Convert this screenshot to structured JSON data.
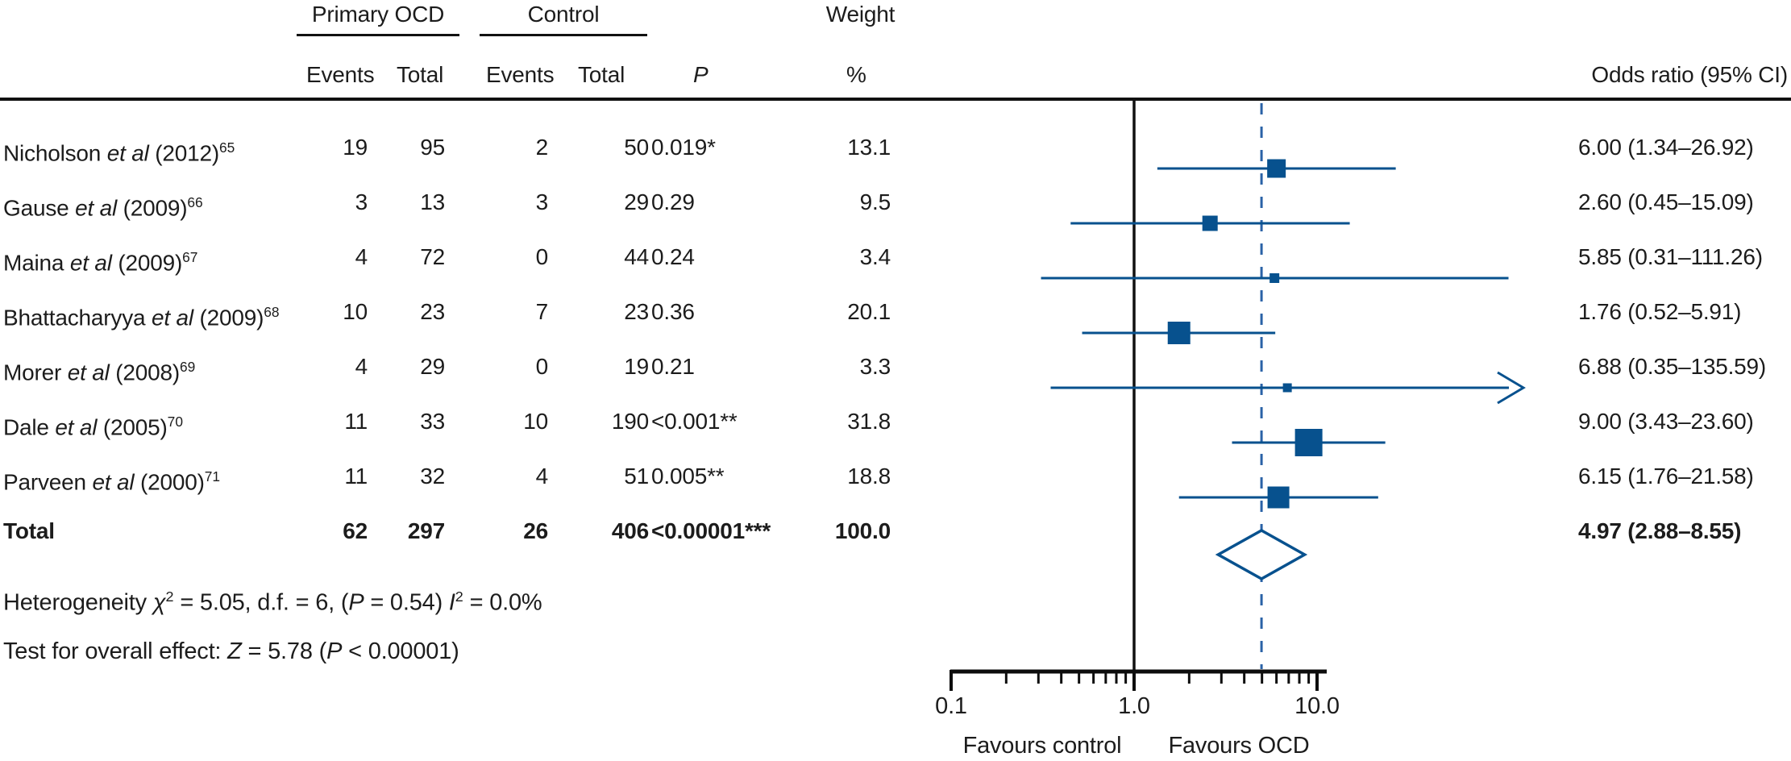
{
  "figure": {
    "accent_blue": "#07518e",
    "dashed_blue": "#2a62a7",
    "line_color": "#111111",
    "text_color": "#1c1c1c",
    "background": "#ffffff"
  },
  "header": {
    "group_ocd": "Primary OCD",
    "group_control": "Control",
    "weight": "Weight",
    "col_events_ocd": "Events",
    "col_total_ocd": "Total",
    "col_events_ctrl": "Events",
    "col_total_ctrl": "Total",
    "col_p": "P",
    "col_pct": "%",
    "col_or": "Odds ratio (95% CI)"
  },
  "studies": [
    {
      "author": "Nicholson",
      "etal": "et al",
      "year": "(2012)",
      "ref": "65",
      "ocd_events": "19",
      "ocd_total": "95",
      "ctrl_events": "2",
      "ctrl_total": "50",
      "p": "0.019*",
      "weight": "13.1",
      "or_ci": "6.00 (1.34–26.92)"
    },
    {
      "author": "Gause",
      "etal": "et al",
      "year": "(2009)",
      "ref": "66",
      "ocd_events": "3",
      "ocd_total": "13",
      "ctrl_events": "3",
      "ctrl_total": "29",
      "p": "0.29",
      "weight": "9.5",
      "or_ci": "2.60 (0.45–15.09)"
    },
    {
      "author": "Maina",
      "etal": "et al",
      "year": "(2009)",
      "ref": "67",
      "ocd_events": "4",
      "ocd_total": "72",
      "ctrl_events": "0",
      "ctrl_total": "44",
      "p": "0.24",
      "weight": "3.4",
      "or_ci": "5.85 (0.31–111.26)"
    },
    {
      "author": "Bhattacharyya",
      "etal": "et al",
      "year": "(2009)",
      "ref": "68",
      "ocd_events": "10",
      "ocd_total": "23",
      "ctrl_events": "7",
      "ctrl_total": "23",
      "p": "0.36",
      "weight": "20.1",
      "or_ci": "1.76 (0.52–5.91)"
    },
    {
      "author": "Morer",
      "etal": "et al",
      "year": "(2008)",
      "ref": "69",
      "ocd_events": "4",
      "ocd_total": "29",
      "ctrl_events": "0",
      "ctrl_total": "19",
      "p": "0.21",
      "weight": "3.3",
      "or_ci": "6.88 (0.35–135.59)"
    },
    {
      "author": "Dale",
      "etal": "et al",
      "year": "(2005)",
      "ref": "70",
      "ocd_events": "11",
      "ocd_total": "33",
      "ctrl_events": "10",
      "ctrl_total": "190",
      "p": "<0.001**",
      "weight": "31.8",
      "or_ci": "9.00 (3.43–23.60)"
    },
    {
      "author": "Parveen",
      "etal": "et al",
      "year": "(2000)",
      "ref": "71",
      "ocd_events": "11",
      "ocd_total": "32",
      "ctrl_events": "4",
      "ctrl_total": "51",
      "p": "0.005**",
      "weight": "18.8",
      "or_ci": "6.15 (1.76–21.58)"
    }
  ],
  "total_row": {
    "label": "Total",
    "ocd_events": "62",
    "ocd_total": "297",
    "ctrl_events": "26",
    "ctrl_total": "406",
    "p": "<0.00001***",
    "weight": "100.0",
    "or_ci": "4.97 (2.88–8.55)"
  },
  "footnotes": {
    "heterogeneity": {
      "segments": [
        {
          "text": "Heterogeneity ",
          "style": ""
        },
        {
          "text": "χ",
          "style": "italic"
        },
        {
          "text": "2",
          "style": "sup"
        },
        {
          "text": " = 5.05, d.f. = 6, (",
          "style": ""
        },
        {
          "text": "P",
          "style": "italic"
        },
        {
          "text": " = 0.54) ",
          "style": ""
        },
        {
          "text": "I",
          "style": "italic"
        },
        {
          "text": "2",
          "style": "sup"
        },
        {
          "text": " = 0.0%",
          "style": ""
        }
      ]
    },
    "overall_effect": {
      "segments": [
        {
          "text": "Test for overall effect: ",
          "style": ""
        },
        {
          "text": "Z",
          "style": "italic"
        },
        {
          "text": " = 5.78 (",
          "style": ""
        },
        {
          "text": "P",
          "style": "italic"
        },
        {
          "text": " < 0.00001)",
          "style": ""
        }
      ]
    }
  },
  "axis": {
    "tick_labels": [
      "0.1",
      "1.0",
      "10.0"
    ],
    "favours_left": "Favours control",
    "favours_right": "Favours OCD"
  },
  "chart_data": {
    "type": "scatter",
    "variant": "forest-plot",
    "x_scale": "log10",
    "x_range": [
      0.1,
      20
    ],
    "null_line": 1.0,
    "pooled_dashed_line": 4.97,
    "x_ticks": [
      0.1,
      1.0,
      10.0
    ],
    "x_tick_labels": [
      "0.1",
      "1.0",
      "10.0"
    ],
    "minor_ticks": [
      0.2,
      0.3,
      0.4,
      0.5,
      0.6,
      0.7,
      0.8,
      0.9,
      2,
      3,
      4,
      5,
      6,
      7,
      8,
      9
    ],
    "xlabel_left": "Favours control",
    "xlabel_right": "Favours OCD",
    "studies": [
      {
        "name": "Nicholson et al (2012)",
        "or": 6.0,
        "ci_low": 1.34,
        "ci_high": 26.92,
        "weight_pct": 13.1,
        "arrow_high": false
      },
      {
        "name": "Gause et al (2009)",
        "or": 2.6,
        "ci_low": 0.45,
        "ci_high": 15.09,
        "weight_pct": 9.5,
        "arrow_high": false
      },
      {
        "name": "Maina et al (2009)",
        "or": 5.85,
        "ci_low": 0.31,
        "ci_high": 111.26,
        "weight_pct": 3.4,
        "arrow_high": false
      },
      {
        "name": "Bhattacharyya et al (2009)",
        "or": 1.76,
        "ci_low": 0.52,
        "ci_high": 5.91,
        "weight_pct": 20.1,
        "arrow_high": false
      },
      {
        "name": "Morer et al (2008)",
        "or": 6.88,
        "ci_low": 0.35,
        "ci_high": 135.59,
        "weight_pct": 3.3,
        "arrow_high": true
      },
      {
        "name": "Dale et al (2005)",
        "or": 9.0,
        "ci_low": 3.43,
        "ci_high": 23.6,
        "weight_pct": 31.8,
        "arrow_high": false
      },
      {
        "name": "Parveen et al (2000)",
        "or": 6.15,
        "ci_low": 1.76,
        "ci_high": 21.58,
        "weight_pct": 18.8,
        "arrow_high": false
      }
    ],
    "pooled": {
      "name": "Total",
      "or": 4.97,
      "ci_low": 2.88,
      "ci_high": 8.55,
      "marker": "open-diamond"
    }
  }
}
